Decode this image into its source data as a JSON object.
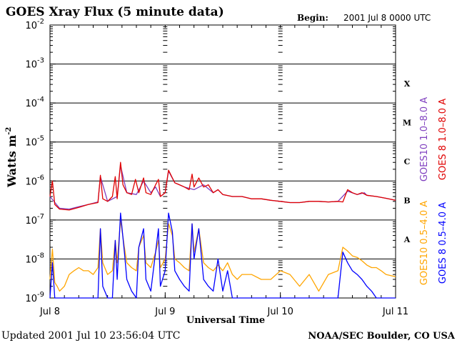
{
  "chart_data": {
    "type": "line",
    "title": "GOES Xray Flux (5 minute data)",
    "begin_label": "Begin:",
    "begin_value": "2001 Jul 8 0000 UTC",
    "xlabel": "Universal Time",
    "ylabel": "Watts m",
    "ylabel_exponent": "-2",
    "y_scale": "log",
    "ylim": [
      1e-09,
      0.01
    ],
    "y_ticks": [
      {
        "base": "10",
        "exp": "-9",
        "value": 1e-09
      },
      {
        "base": "10",
        "exp": "-8",
        "value": 1e-08
      },
      {
        "base": "10",
        "exp": "-7",
        "value": 1e-07
      },
      {
        "base": "10",
        "exp": "-6",
        "value": 1e-06
      },
      {
        "base": "10",
        "exp": "-5",
        "value": 1e-05
      },
      {
        "base": "10",
        "exp": "-4",
        "value": 0.0001
      },
      {
        "base": "10",
        "exp": "-3",
        "value": 0.001
      },
      {
        "base": "10",
        "exp": "-2",
        "value": 0.01
      }
    ],
    "x_range_hours": [
      0,
      72
    ],
    "x_ticks": [
      {
        "label": "Jul 8",
        "hour": 0
      },
      {
        "label": "Jul 9",
        "hour": 24
      },
      {
        "label": "Jul 10",
        "hour": 48
      },
      {
        "label": "Jul 11",
        "hour": 72
      }
    ],
    "flare_classes": [
      {
        "label": "X",
        "value": 0.000316
      },
      {
        "label": "M",
        "value": 3.16e-05
      },
      {
        "label": "C",
        "value": 3.16e-06
      },
      {
        "label": "B",
        "value": 3.16e-07
      },
      {
        "label": "A",
        "value": 3.16e-08
      }
    ],
    "grid": true,
    "series": [
      {
        "name": "GOES10 1.0–8.0 A",
        "color": "#7f3fbf",
        "x": [
          0,
          2,
          4,
          6,
          8,
          10,
          10.5,
          12,
          14,
          14.7,
          16,
          18,
          19.5,
          21,
          22,
          23,
          24,
          24.7,
          26,
          28,
          30,
          32,
          34,
          35,
          36,
          38,
          40,
          42,
          44,
          46,
          48,
          50,
          52,
          54,
          56,
          58,
          60,
          62,
          64,
          65.5,
          66,
          68,
          70,
          72
        ],
        "y": [
          4e-07,
          2e-07,
          1.9e-07,
          2.2e-07,
          2.5e-07,
          2.9e-07,
          1.3e-06,
          3e-07,
          4e-07,
          2.5e-06,
          5e-07,
          4.5e-07,
          1e-06,
          5e-07,
          7e-07,
          4e-07,
          5e-07,
          1.8e-06,
          9e-07,
          7e-07,
          6e-07,
          8e-07,
          5e-07,
          6e-07,
          4.5e-07,
          4e-07,
          4e-07,
          3.5e-07,
          3.5e-07,
          3.2e-07,
          3e-07,
          2.8e-07,
          2.8e-07,
          3e-07,
          3e-07,
          2.9e-07,
          3e-07,
          5.5e-07,
          4.5e-07,
          5e-07,
          4.3e-07,
          4e-07,
          3.6e-07,
          3.2e-07
        ]
      },
      {
        "name": "GOES 8 1.0–8.0 A",
        "color": "#e00000",
        "x": [
          0,
          0.5,
          1,
          2,
          4,
          6,
          8,
          10,
          10.5,
          11,
          12,
          13,
          13.6,
          14,
          14.7,
          15.2,
          16,
          17,
          17.8,
          18.5,
          19.5,
          20,
          21,
          22,
          22.6,
          23,
          24,
          24.7,
          25.5,
          26,
          27,
          28,
          29,
          29.6,
          30,
          31,
          32,
          33,
          34,
          35,
          36,
          38,
          40,
          42,
          44,
          46,
          48,
          50,
          52,
          54,
          56,
          58,
          60,
          61,
          62,
          63,
          64,
          65,
          66,
          68,
          70,
          72
        ],
        "y": [
          4e-07,
          1e-06,
          2.5e-07,
          1.9e-07,
          1.8e-07,
          2.1e-07,
          2.5e-07,
          2.8e-07,
          1.4e-06,
          3.5e-07,
          3e-07,
          4e-07,
          1.3e-06,
          3.5e-07,
          3e-06,
          8e-07,
          5e-07,
          4.5e-07,
          1.1e-06,
          5e-07,
          1.2e-06,
          5e-07,
          4.5e-07,
          8e-07,
          1.1e-06,
          4e-07,
          5e-07,
          1.9e-06,
          1.2e-06,
          9e-07,
          8e-07,
          7e-07,
          6e-07,
          1.5e-06,
          7e-07,
          1.2e-06,
          7e-07,
          8e-07,
          5e-07,
          6e-07,
          4.5e-07,
          4e-07,
          4e-07,
          3.5e-07,
          3.5e-07,
          3.2e-07,
          3e-07,
          2.8e-07,
          2.8e-07,
          3e-07,
          3e-07,
          2.9e-07,
          3e-07,
          2.9e-07,
          6e-07,
          5e-07,
          4.5e-07,
          5e-07,
          4.3e-07,
          4e-07,
          3.6e-07,
          3.2e-07
        ]
      },
      {
        "name": "GOES10 0.5–4.0 A",
        "color": "#ffa500",
        "x": [
          0,
          0.5,
          1,
          1.5,
          2,
          3,
          4,
          5,
          6,
          7,
          8,
          9,
          10,
          10.5,
          11,
          12,
          13,
          13.6,
          14,
          14.7,
          15.5,
          16,
          17,
          18,
          18.5,
          19.5,
          20,
          21,
          22,
          22.6,
          23,
          24,
          24.7,
          25.5,
          26,
          27,
          28,
          29,
          29.6,
          30,
          31,
          32,
          33,
          34,
          35,
          36,
          37,
          38,
          39,
          40,
          42,
          44,
          46,
          48,
          50,
          52,
          54,
          56,
          58,
          60,
          61,
          62,
          63,
          64,
          65,
          66,
          67,
          68,
          69,
          70,
          72
        ],
        "y": [
          3e-09,
          1.8e-08,
          2.5e-09,
          2e-09,
          1.5e-09,
          2e-09,
          4e-09,
          5e-09,
          6e-09,
          5e-09,
          5e-09,
          4e-09,
          6e-09,
          6e-08,
          8e-09,
          4e-09,
          5e-09,
          3e-08,
          8e-09,
          1e-07,
          2e-08,
          8e-09,
          6e-09,
          5e-09,
          2e-08,
          4e-08,
          8e-09,
          6e-09,
          1.5e-08,
          3e-08,
          6e-09,
          1e-08,
          8e-08,
          4e-08,
          1e-08,
          8e-09,
          6e-09,
          5e-09,
          8e-08,
          1.5e-08,
          6e-08,
          8e-09,
          6e-09,
          5e-09,
          7e-09,
          5e-09,
          8e-09,
          4e-09,
          3e-09,
          4e-09,
          4e-09,
          3e-09,
          3e-09,
          5e-09,
          4e-09,
          2e-09,
          4e-09,
          1.5e-09,
          4e-09,
          5e-09,
          2e-08,
          1.6e-08,
          1.2e-08,
          1.1e-08,
          9e-09,
          7e-09,
          6e-09,
          6e-09,
          5e-09,
          4e-09,
          3.5e-09
        ]
      },
      {
        "name": "GOES 8 0.5–4.0 A",
        "color": "#0000ff",
        "x": [
          0,
          0.5,
          1,
          1.5,
          2,
          3,
          4,
          5,
          6,
          7,
          8,
          9,
          10,
          10.5,
          11,
          12,
          13,
          13.6,
          14,
          14.7,
          15.5,
          16,
          17,
          18,
          18.5,
          19.5,
          20,
          21,
          22,
          22.6,
          23,
          24,
          24.7,
          25.5,
          26,
          27,
          28,
          29,
          29.6,
          30,
          31,
          32,
          33,
          34,
          35,
          36,
          37,
          38,
          39,
          40,
          41,
          42,
          44,
          46,
          48,
          50,
          52,
          54,
          56,
          58,
          60,
          61,
          62,
          63,
          64,
          65,
          66,
          67,
          68,
          69,
          70,
          72
        ],
        "y": [
          1e-09,
          8e-09,
          1e-09,
          1e-09,
          1e-09,
          1e-09,
          1e-09,
          1e-09,
          1e-09,
          1e-09,
          1e-09,
          1e-09,
          1e-09,
          6e-08,
          2e-09,
          1e-09,
          1e-09,
          3e-08,
          3e-09,
          1.5e-07,
          1.5e-08,
          3e-09,
          1.5e-09,
          1e-09,
          2e-08,
          6e-08,
          3e-09,
          1.5e-09,
          1.5e-08,
          6e-08,
          2e-09,
          5e-09,
          1.5e-07,
          5e-08,
          5e-09,
          3e-09,
          2e-09,
          1.5e-09,
          8e-08,
          1e-08,
          6e-08,
          3e-09,
          2e-09,
          1.5e-09,
          1e-08,
          1.5e-09,
          5e-09,
          1e-09,
          1e-09,
          1e-09,
          1e-09,
          1e-09,
          1e-09,
          1e-09,
          1e-09,
          1e-09,
          1e-09,
          1e-09,
          1e-09,
          1e-09,
          1e-09,
          1.5e-08,
          8e-09,
          5e-09,
          4e-09,
          3e-09,
          2e-09,
          1.5e-09,
          1e-09,
          1e-09,
          1e-09,
          1e-09
        ]
      }
    ]
  },
  "footer": {
    "updated": "Updated 2001 Jul 10 23:56:04 UTC",
    "credit": "NOAA/SEC Boulder, CO USA"
  }
}
